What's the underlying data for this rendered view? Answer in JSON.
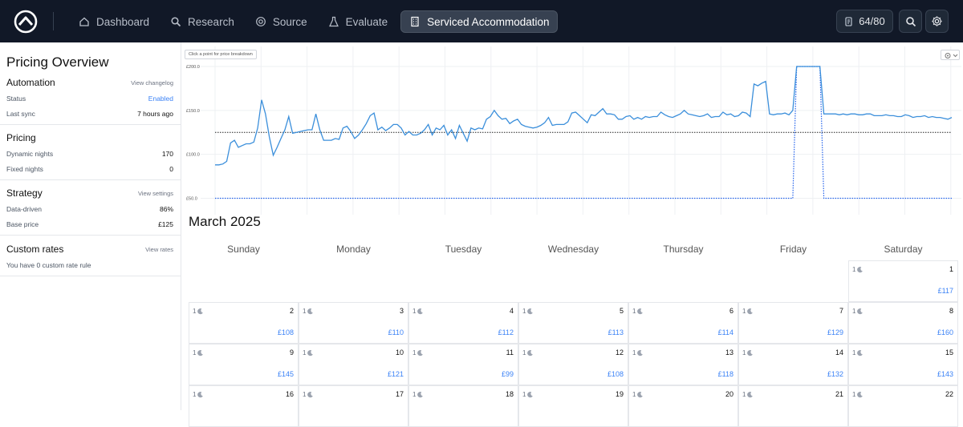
{
  "nav": {
    "items": [
      {
        "label": "Dashboard",
        "icon": "home-icon"
      },
      {
        "label": "Research",
        "icon": "search-icon"
      },
      {
        "label": "Source",
        "icon": "target-icon"
      },
      {
        "label": "Evaluate",
        "icon": "flask-icon"
      },
      {
        "label": "Serviced Accommodation",
        "icon": "building-icon",
        "active": true
      }
    ],
    "credits": "64/80"
  },
  "sidebar": {
    "title": "Pricing Overview",
    "automation": {
      "heading": "Automation",
      "link": "View changelog",
      "rows": [
        {
          "label": "Status",
          "value": "Enabled"
        },
        {
          "label": "Last sync",
          "value": "7 hours ago"
        }
      ]
    },
    "pricing": {
      "heading": "Pricing",
      "rows": [
        {
          "label": "Dynamic nights",
          "value": "170"
        },
        {
          "label": "Fixed nights",
          "value": "0"
        }
      ]
    },
    "strategy": {
      "heading": "Strategy",
      "link": "View settings",
      "rows": [
        {
          "label": "Data-driven",
          "value": "86%"
        },
        {
          "label": "Base price",
          "value": "£125"
        }
      ]
    },
    "custom": {
      "heading": "Custom rates",
      "link": "View rates",
      "text": "You have 0 custom rate rule"
    }
  },
  "chart_data": {
    "type": "line",
    "hint": "Click a point for price breakdown",
    "y_ticks": [
      "£200.0",
      "£150.0",
      "£100.0",
      "£50.0"
    ],
    "ylim": [
      45,
      210
    ],
    "base_price": 125,
    "series": [
      {
        "values": [
          88,
          88,
          89,
          92,
          113,
          116,
          108,
          110,
          112,
          112,
          114,
          130,
          162,
          146,
          120,
          99,
          108,
          118,
          128,
          143,
          124,
          125,
          126,
          127,
          128,
          128,
          146,
          128,
          116,
          116,
          116,
          118,
          117,
          130,
          132,
          126,
          118,
          122,
          128,
          135,
          144,
          147,
          128,
          131,
          127,
          130,
          134,
          134,
          130,
          122,
          126,
          122,
          122,
          124,
          128,
          134,
          122,
          130,
          128,
          133,
          122,
          128,
          118,
          133,
          124,
          115,
          130,
          128,
          130,
          129,
          140,
          143,
          150,
          144,
          140,
          141,
          135,
          138,
          140,
          134,
          132,
          131,
          130,
          131,
          133,
          136,
          142,
          133,
          134,
          134,
          134,
          137,
          147,
          148,
          144,
          140,
          136,
          145,
          144,
          148,
          152,
          146,
          146,
          145,
          140,
          140,
          143,
          144,
          140,
          142,
          140,
          143,
          142,
          143,
          143,
          148,
          145,
          143,
          142,
          144,
          146,
          150,
          146,
          145,
          144,
          143,
          144,
          146,
          142,
          143,
          143,
          148,
          145,
          146,
          143,
          144,
          148,
          147,
          143,
          180,
          178,
          181,
          183,
          146,
          145,
          146,
          146,
          147,
          145,
          150,
          200,
          200,
          200,
          200,
          200,
          200,
          200,
          146,
          146,
          146,
          146,
          145,
          146,
          145,
          146,
          146,
          145,
          145,
          146,
          146,
          144,
          144,
          144,
          145,
          144,
          144,
          143,
          143,
          145,
          144,
          142,
          143,
          143,
          144,
          142,
          143,
          142,
          142,
          141,
          140,
          142
        ]
      }
    ]
  },
  "calendar": {
    "month": "March 2025",
    "weekdays": [
      "Sunday",
      "Monday",
      "Tuesday",
      "Wednesday",
      "Thursday",
      "Friday",
      "Saturday"
    ],
    "weeks": [
      [
        null,
        null,
        null,
        null,
        null,
        null,
        {
          "day": "1",
          "nights": "1",
          "price": "£117"
        }
      ],
      [
        {
          "day": "2",
          "nights": "1",
          "price": "£108"
        },
        {
          "day": "3",
          "nights": "1",
          "price": "£110"
        },
        {
          "day": "4",
          "nights": "1",
          "price": "£112"
        },
        {
          "day": "5",
          "nights": "1",
          "price": "£113"
        },
        {
          "day": "6",
          "nights": "1",
          "price": "£114"
        },
        {
          "day": "7",
          "nights": "1",
          "price": "£129"
        },
        {
          "day": "8",
          "nights": "1",
          "price": "£160"
        }
      ],
      [
        {
          "day": "9",
          "nights": "1",
          "price": "£145"
        },
        {
          "day": "10",
          "nights": "1",
          "price": "£121"
        },
        {
          "day": "11",
          "nights": "1",
          "price": "£99"
        },
        {
          "day": "12",
          "nights": "1",
          "price": "£108"
        },
        {
          "day": "13",
          "nights": "1",
          "price": "£118"
        },
        {
          "day": "14",
          "nights": "1",
          "price": "£132"
        },
        {
          "day": "15",
          "nights": "1",
          "price": "£143"
        }
      ],
      [
        {
          "day": "16",
          "nights": "1",
          "price": ""
        },
        {
          "day": "17",
          "nights": "1",
          "price": ""
        },
        {
          "day": "18",
          "nights": "1",
          "price": ""
        },
        {
          "day": "19",
          "nights": "1",
          "price": ""
        },
        {
          "day": "20",
          "nights": "1",
          "price": ""
        },
        {
          "day": "21",
          "nights": "1",
          "price": ""
        },
        {
          "day": "22",
          "nights": "1",
          "price": ""
        }
      ]
    ]
  }
}
